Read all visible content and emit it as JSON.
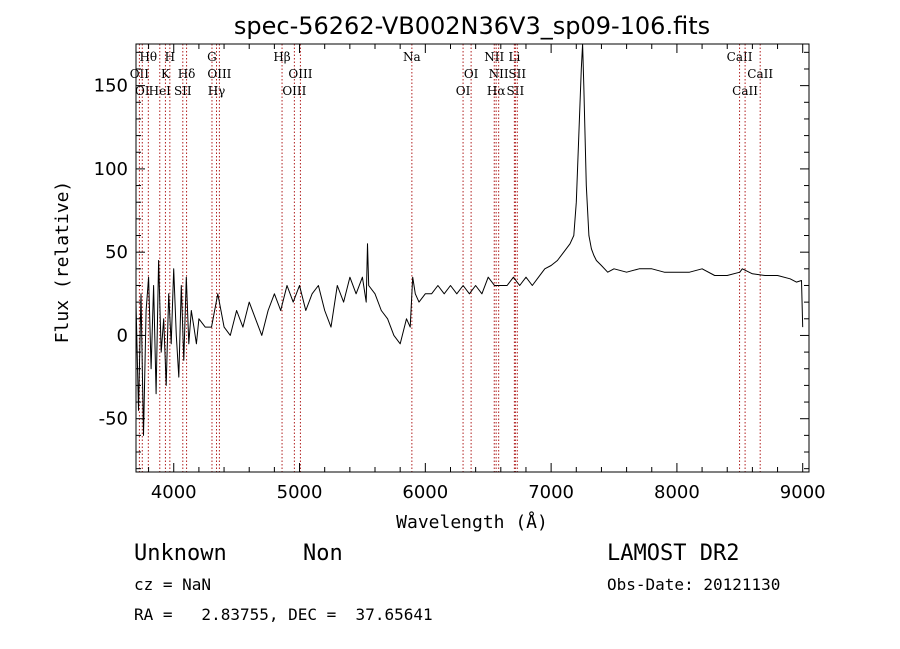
{
  "chart_data": {
    "type": "line",
    "title": "spec-56262-VB002N36V3_sp09-106.fits",
    "xlabel": "Wavelength (Å)",
    "ylabel": "Flux (relative)",
    "xlim": [
      3700,
      9050
    ],
    "ylim": [
      -82,
      175
    ],
    "x_ticks": [
      4000,
      5000,
      6000,
      7000,
      8000,
      9000
    ],
    "y_ticks": [
      -50,
      0,
      50,
      100,
      150
    ],
    "grid": false,
    "series": [
      {
        "color": "#000000",
        "x": [
          3700,
          3720,
          3740,
          3760,
          3780,
          3800,
          3820,
          3840,
          3860,
          3880,
          3900,
          3920,
          3940,
          3960,
          3980,
          4000,
          4020,
          4040,
          4060,
          4080,
          4100,
          4120,
          4140,
          4160,
          4180,
          4200,
          4250,
          4300,
          4350,
          4400,
          4450,
          4500,
          4550,
          4600,
          4650,
          4700,
          4750,
          4800,
          4850,
          4900,
          4950,
          5000,
          5050,
          5100,
          5150,
          5200,
          5250,
          5300,
          5350,
          5400,
          5450,
          5500,
          5530,
          5540,
          5550,
          5600,
          5650,
          5700,
          5750,
          5800,
          5850,
          5880,
          5900,
          5920,
          5950,
          6000,
          6050,
          6100,
          6150,
          6200,
          6250,
          6300,
          6350,
          6400,
          6450,
          6500,
          6550,
          6600,
          6650,
          6700,
          6750,
          6800,
          6850,
          6900,
          6950,
          7000,
          7050,
          7100,
          7150,
          7180,
          7200,
          7220,
          7240,
          7250,
          7260,
          7280,
          7300,
          7320,
          7340,
          7360,
          7400,
          7450,
          7500,
          7600,
          7700,
          7800,
          7900,
          8000,
          8100,
          8200,
          8300,
          8400,
          8500,
          8520,
          8600,
          8700,
          8800,
          8900,
          8950,
          8990,
          9000
        ],
        "y": [
          20,
          -45,
          25,
          -60,
          15,
          35,
          -20,
          30,
          -35,
          45,
          -10,
          10,
          -30,
          25,
          -5,
          40,
          0,
          -25,
          30,
          -15,
          35,
          -5,
          15,
          5,
          -5,
          10,
          5,
          5,
          25,
          5,
          0,
          15,
          5,
          20,
          10,
          0,
          15,
          25,
          15,
          30,
          20,
          30,
          15,
          25,
          30,
          15,
          5,
          30,
          20,
          35,
          25,
          35,
          20,
          55,
          30,
          25,
          15,
          10,
          0,
          -5,
          10,
          5,
          35,
          25,
          20,
          25,
          25,
          30,
          25,
          30,
          25,
          30,
          25,
          30,
          25,
          35,
          30,
          30,
          30,
          35,
          30,
          35,
          30,
          35,
          40,
          42,
          45,
          50,
          55,
          60,
          80,
          120,
          160,
          175,
          150,
          90,
          60,
          52,
          48,
          45,
          42,
          38,
          40,
          38,
          40,
          40,
          38,
          38,
          38,
          40,
          36,
          36,
          38,
          40,
          37,
          36,
          36,
          34,
          32,
          33,
          5
        ]
      }
    ],
    "line_markers": [
      {
        "wavelength": 3727,
        "label": "OII",
        "row": 2
      },
      {
        "wavelength": 3750,
        "label": "OI",
        "row": 3
      },
      {
        "wavelength": 3798,
        "label": "Hθ",
        "row": 1
      },
      {
        "wavelength": 3889,
        "label": "HeI",
        "row": 3
      },
      {
        "wavelength": 3934,
        "label": "K",
        "row": 2
      },
      {
        "wavelength": 3969,
        "label": "H",
        "row": 1
      },
      {
        "wavelength": 4072,
        "label": "SII",
        "row": 3
      },
      {
        "wavelength": 4102,
        "label": "Hδ",
        "row": 2
      },
      {
        "wavelength": 4304,
        "label": "G",
        "row": 1
      },
      {
        "wavelength": 4340,
        "label": "Hγ",
        "row": 3
      },
      {
        "wavelength": 4363,
        "label": "OIII",
        "row": 2
      },
      {
        "wavelength": 4861,
        "label": "Hβ",
        "row": 1
      },
      {
        "wavelength": 4959,
        "label": "OIII",
        "row": 3
      },
      {
        "wavelength": 5007,
        "label": "OIII",
        "row": 2
      },
      {
        "wavelength": 5893,
        "label": "Na",
        "row": 1
      },
      {
        "wavelength": 6300,
        "label": "OI",
        "row": 3
      },
      {
        "wavelength": 6364,
        "label": "OI",
        "row": 2
      },
      {
        "wavelength": 6548,
        "label": "NII",
        "row": 1
      },
      {
        "wavelength": 6563,
        "label": "Hα",
        "row": 3
      },
      {
        "wavelength": 6583,
        "label": "NII",
        "row": 2
      },
      {
        "wavelength": 6708,
        "label": "Li",
        "row": 1
      },
      {
        "wavelength": 6716,
        "label": "SII",
        "row": 3
      },
      {
        "wavelength": 6731,
        "label": "SII",
        "row": 2
      },
      {
        "wavelength": 8498,
        "label": "CaII",
        "row": 1
      },
      {
        "wavelength": 8542,
        "label": "CaII",
        "row": 3
      },
      {
        "wavelength": 8662,
        "label": "CaII",
        "row": 2
      }
    ]
  },
  "info": {
    "classification": "Unknown",
    "subclass": "Non",
    "survey": "LAMOST DR2",
    "redshift_text": "cz = NaN",
    "obs_date_text": "Obs-Date: 20121130",
    "coords_text": "RA =   2.83755, DEC =  37.65641"
  },
  "colors": {
    "spectrum": "#000000",
    "marker_line": "#b02020",
    "axes": "#000000"
  }
}
